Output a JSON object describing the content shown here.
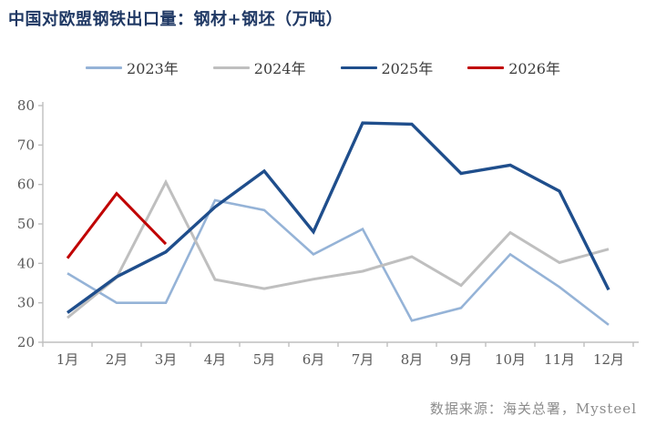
{
  "title": "中国对欧盟钢铁出口量：钢材+钢坯（万吨）",
  "source_note": "数据来源：海关总署，Mysteel",
  "colors": {
    "title": "#1F3864",
    "axis_text": "#595959",
    "axis_line": "#BFBFBF",
    "background": "#FFFFFF"
  },
  "chart_data": {
    "type": "line",
    "categories": [
      "1月",
      "2月",
      "3月",
      "4月",
      "5月",
      "6月",
      "7月",
      "8月",
      "9月",
      "10月",
      "11月",
      "12月"
    ],
    "series": [
      {
        "name": "2023年",
        "color": "#95B3D7",
        "stroke_width": 2.6,
        "values": [
          37.5,
          30.0,
          30.0,
          56.0,
          53.5,
          42.3,
          48.7,
          25.5,
          28.7,
          42.3,
          34.0,
          24.4
        ]
      },
      {
        "name": "2024年",
        "color": "#BFBFBF",
        "stroke_width": 3.0,
        "values": [
          26.2,
          36.4,
          60.6,
          35.9,
          33.6,
          36.0,
          38.0,
          41.7,
          34.4,
          47.8,
          40.2,
          43.6
        ]
      },
      {
        "name": "2025年",
        "color": "#1F4E8C",
        "stroke_width": 3.4,
        "values": [
          27.5,
          36.6,
          42.9,
          54.3,
          63.4,
          48.0,
          75.6,
          75.3,
          62.8,
          64.9,
          58.3,
          33.3
        ]
      },
      {
        "name": "2026年",
        "color": "#C00000",
        "stroke_width": 3.0,
        "values": [
          41.3,
          57.7,
          44.9
        ]
      }
    ],
    "ylim": [
      20,
      80
    ],
    "ytick_step": 10,
    "ytick_labels": [
      "20",
      "30",
      "40",
      "50",
      "60",
      "70",
      "80"
    ],
    "grid": false,
    "legend_position": "top",
    "xlabel": "",
    "ylabel": ""
  }
}
